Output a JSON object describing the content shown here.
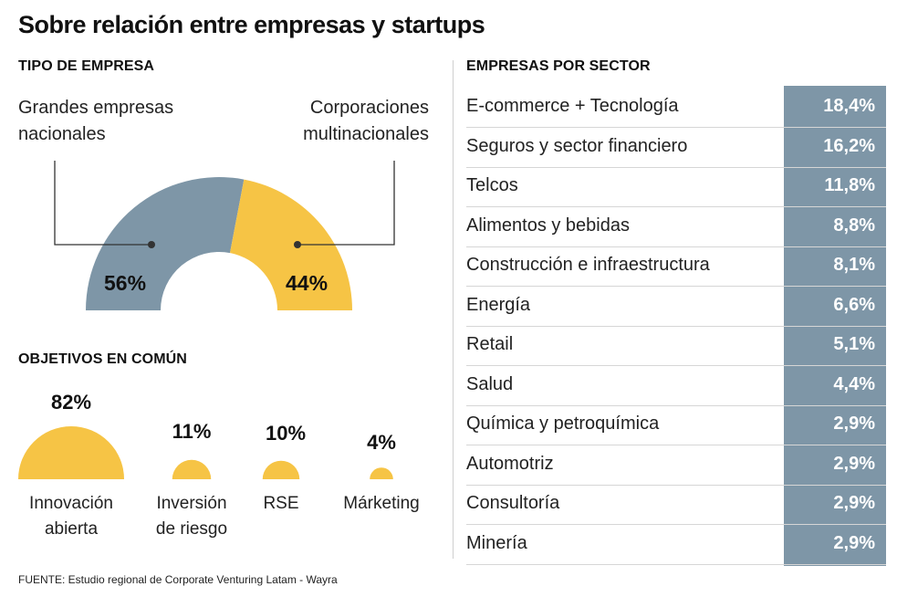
{
  "title": "Sobre relación entre empresas y startups",
  "colors": {
    "gray": "#7e96a7",
    "yellow": "#f6c445",
    "line": "#333333"
  },
  "tipo": {
    "heading": "TIPO DE EMPRESA",
    "left_label_1": "Grandes empresas",
    "left_label_2": "nacionales",
    "right_label_1": "Corporaciones",
    "right_label_2": "multinacionales",
    "left_pct": "56%",
    "right_pct": "44%"
  },
  "objetivos": {
    "heading": "OBJETIVOS EN COMÚN",
    "items": [
      {
        "pct": "82%",
        "label_1": "Innovación",
        "label_2": "abierta"
      },
      {
        "pct": "11%",
        "label_1": "Inversión",
        "label_2": "de riesgo"
      },
      {
        "pct": "10%",
        "label_1": "RSE",
        "label_2": ""
      },
      {
        "pct": "4%",
        "label_1": "Márketing",
        "label_2": ""
      }
    ]
  },
  "sector": {
    "heading": "EMPRESAS POR SECTOR",
    "rows": [
      {
        "name": "E-commerce + Tecnología",
        "value": "18,4%"
      },
      {
        "name": "Seguros y sector financiero",
        "value": "16,2%"
      },
      {
        "name": "Telcos",
        "value": "11,8%"
      },
      {
        "name": "Alimentos y bebidas",
        "value": "8,8%"
      },
      {
        "name": "Construcción e infraestructura",
        "value": "8,1%"
      },
      {
        "name": "Energía",
        "value": "6,6%"
      },
      {
        "name": "Retail",
        "value": "5,1%"
      },
      {
        "name": "Salud",
        "value": "4,4%"
      },
      {
        "name": "Química y petroquímica",
        "value": "2,9%"
      },
      {
        "name": "Automotriz",
        "value": "2,9%"
      },
      {
        "name": "Consultoría",
        "value": "2,9%"
      },
      {
        "name": "Minería",
        "value": "2,9%"
      }
    ]
  },
  "source": "FUENTE: Estudio regional de Corporate Venturing Latam - Wayra",
  "chart_data": [
    {
      "type": "pie",
      "title": "TIPO DE EMPRESA",
      "categories": [
        "Grandes empresas nacionales",
        "Corporaciones multinacionales"
      ],
      "values": [
        56,
        44
      ],
      "colors": [
        "#7e96a7",
        "#f6c445"
      ]
    },
    {
      "type": "area",
      "title": "OBJETIVOS EN COMÚN",
      "categories": [
        "Innovación abierta",
        "Inversión de riesgo",
        "RSE",
        "Márketing"
      ],
      "values": [
        82,
        11,
        10,
        4
      ]
    },
    {
      "type": "table",
      "title": "EMPRESAS POR SECTOR",
      "categories": [
        "E-commerce + Tecnología",
        "Seguros y sector financiero",
        "Telcos",
        "Alimentos y bebidas",
        "Construcción e infraestructura",
        "Energía",
        "Retail",
        "Salud",
        "Química y petroquímica",
        "Automotriz",
        "Consultoría",
        "Minería"
      ],
      "values": [
        18.4,
        16.2,
        11.8,
        8.8,
        8.1,
        6.6,
        5.1,
        4.4,
        2.9,
        2.9,
        2.9,
        2.9
      ]
    }
  ]
}
